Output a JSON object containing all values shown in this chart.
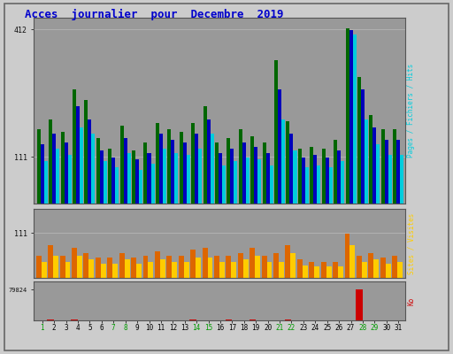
{
  "title": "Acces  journalier  pour  Decembre  2019",
  "days": [
    1,
    2,
    3,
    4,
    5,
    6,
    7,
    8,
    9,
    10,
    11,
    12,
    13,
    14,
    15,
    16,
    17,
    18,
    19,
    20,
    21,
    22,
    23,
    24,
    25,
    26,
    27,
    28,
    29,
    30,
    31
  ],
  "hits": [
    175,
    200,
    170,
    270,
    245,
    155,
    130,
    185,
    125,
    145,
    190,
    175,
    170,
    190,
    230,
    145,
    155,
    175,
    160,
    145,
    340,
    195,
    130,
    135,
    130,
    150,
    415,
    300,
    210,
    175,
    175
  ],
  "files": [
    140,
    165,
    145,
    230,
    200,
    125,
    110,
    155,
    105,
    120,
    165,
    150,
    145,
    165,
    200,
    120,
    130,
    145,
    135,
    120,
    270,
    165,
    110,
    115,
    110,
    125,
    410,
    270,
    180,
    150,
    150
  ],
  "pages": [
    100,
    130,
    115,
    180,
    165,
    100,
    85,
    120,
    80,
    95,
    130,
    120,
    115,
    130,
    165,
    90,
    100,
    110,
    105,
    90,
    200,
    125,
    85,
    90,
    85,
    100,
    400,
    200,
    140,
    115,
    115
  ],
  "visits_orange": [
    55,
    80,
    55,
    75,
    60,
    50,
    50,
    60,
    50,
    55,
    65,
    55,
    55,
    70,
    75,
    55,
    55,
    60,
    75,
    55,
    60,
    80,
    45,
    40,
    40,
    40,
    110,
    55,
    60,
    50,
    55
  ],
  "visits_yellow": [
    40,
    55,
    40,
    55,
    45,
    35,
    35,
    45,
    35,
    40,
    45,
    40,
    40,
    50,
    50,
    40,
    40,
    45,
    55,
    40,
    40,
    60,
    30,
    28,
    28,
    28,
    80,
    40,
    45,
    35,
    40
  ],
  "kbytes": [
    800,
    1800,
    600,
    2800,
    500,
    500,
    500,
    500,
    500,
    500,
    500,
    500,
    500,
    1200,
    1100,
    500,
    1800,
    500,
    1200,
    500,
    500,
    1200,
    500,
    500,
    500,
    500,
    500,
    79824,
    500,
    500,
    500
  ],
  "color_green": "#006600",
  "color_blue": "#0000bb",
  "color_cyan": "#00ccdd",
  "color_orange": "#dd6600",
  "color_yellow": "#ffcc00",
  "color_red": "#cc0000",
  "bg_color": "#cccccc",
  "plot_bg": "#999999",
  "title_color": "#0000cc",
  "label_pages": "Pages / Fichiers / Hits",
  "label_visits": "Sites / Visites",
  "label_kb": "Ko",
  "ylim1": 440,
  "ytick1_top": 412,
  "ytick1_bot": 111,
  "ylim2": 170,
  "ytick2": 111,
  "ylim3": 90000,
  "ytick3": 79824,
  "weekend_days": [
    1,
    7,
    8,
    14,
    15,
    21,
    22,
    28,
    29
  ],
  "weekend_color": "#009900",
  "weekday_color": "#000000"
}
